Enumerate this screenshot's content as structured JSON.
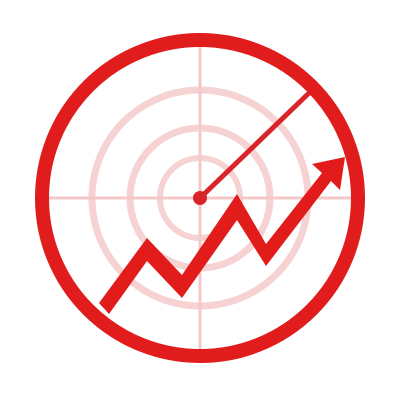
{
  "icon": {
    "name": "radar-growth-icon",
    "style": "flat",
    "colors": {
      "primary_red": "#e21b1b",
      "dark_red": "#c8161b",
      "sweep_red": "#d9242a",
      "faint_grid": "#f4c8c8",
      "background": "#ffffff"
    },
    "elements": [
      "outer-ring",
      "crosshair-grid",
      "radar-sweep-line",
      "radar-center-dot",
      "growth-arrow"
    ]
  }
}
